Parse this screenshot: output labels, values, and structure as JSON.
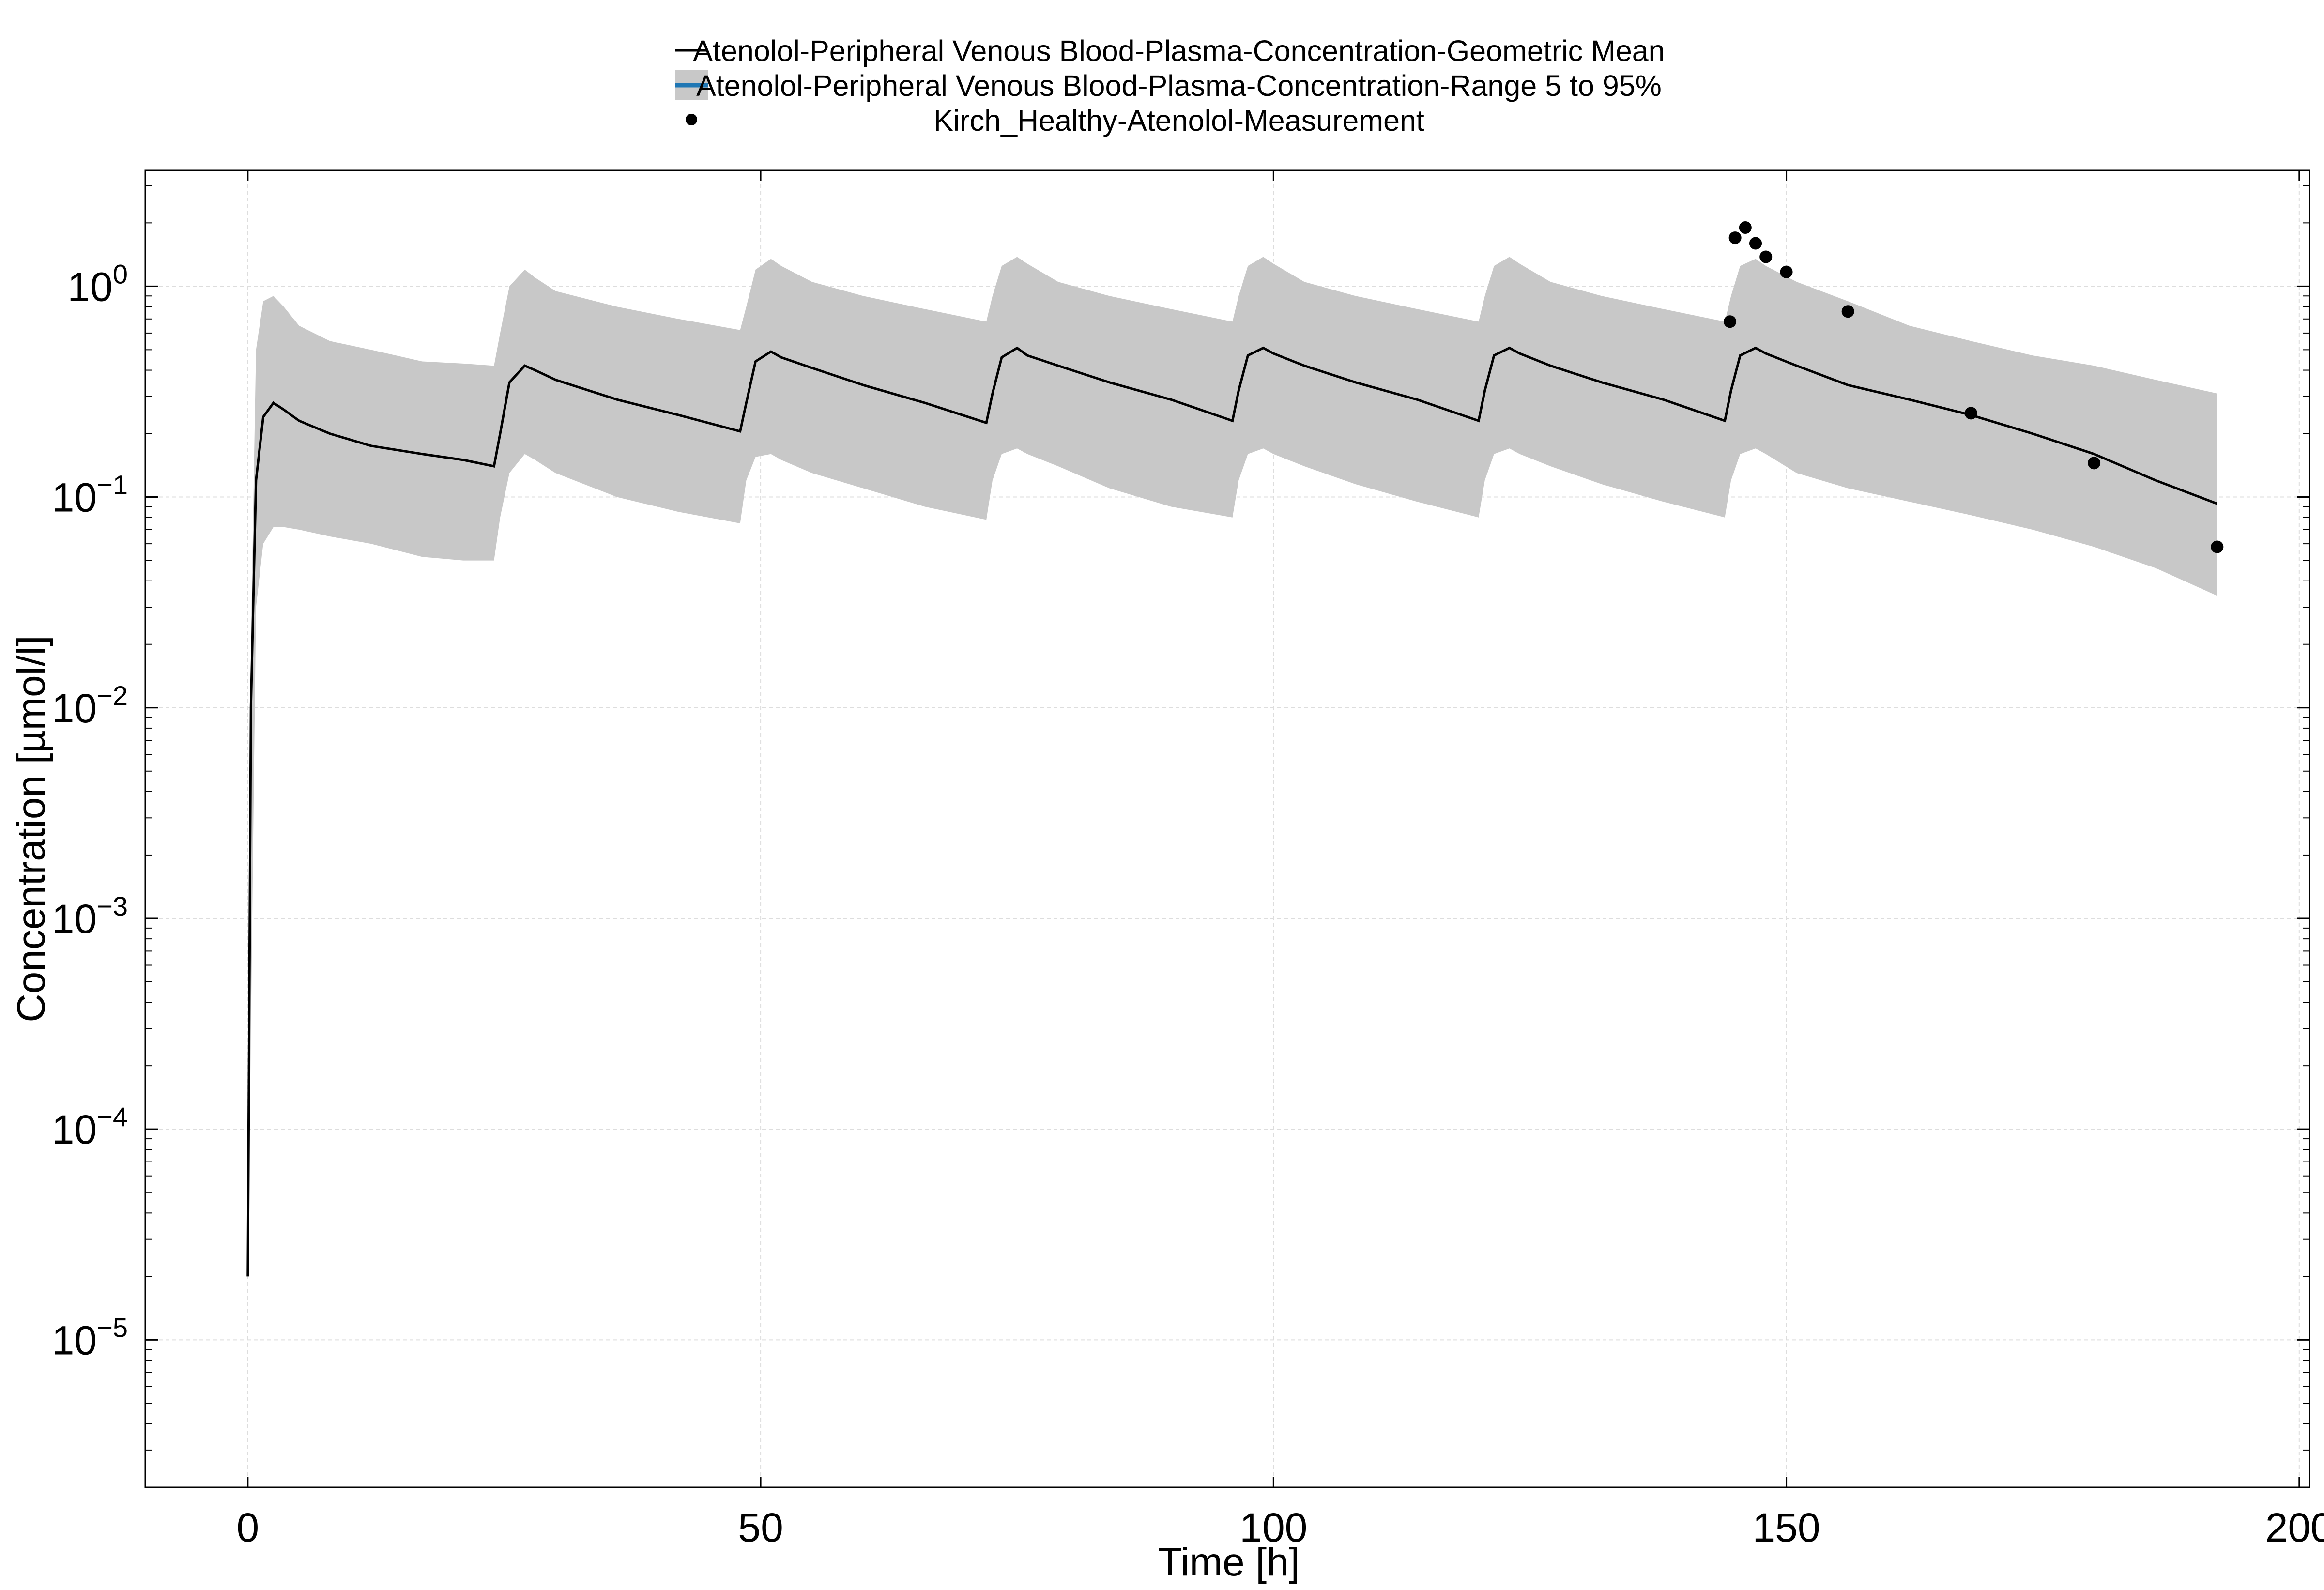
{
  "chart_data": {
    "type": "line",
    "title": "",
    "xlabel": "Time [h]",
    "ylabel": "Concentration [µmol/l]",
    "xlim": [
      -10,
      201
    ],
    "ylim_log10": [
      -5.7,
      0.55
    ],
    "yscale": "log",
    "grid": true,
    "legend_position": "top-center",
    "x_tick_labels": [
      "0",
      "50",
      "100",
      "150",
      "200"
    ],
    "x_ticks": [
      0,
      50,
      100,
      150,
      200
    ],
    "y_tick_labels": [
      {
        "base": "10",
        "exp": "0",
        "value": 1
      },
      {
        "base": "10",
        "exp": "−1",
        "value": 0.1
      },
      {
        "base": "10",
        "exp": "−2",
        "value": 0.01
      },
      {
        "base": "10",
        "exp": "−3",
        "value": 0.001
      },
      {
        "base": "10",
        "exp": "−4",
        "value": 0.0001
      },
      {
        "base": "10",
        "exp": "−5",
        "value": 1e-05
      }
    ],
    "legend": [
      {
        "label": "Atenolol-Peripheral Venous Blood-Plasma-Concentration-Geometric Mean",
        "marker": "line",
        "color": "#000000"
      },
      {
        "label": "Atenolol-Peripheral Venous Blood-Plasma-Concentration-Range 5 to 95%",
        "marker": "band",
        "color": "#c8c8c8",
        "edge_color": "#1f77b4"
      },
      {
        "label": "Kirch_Healthy-Atenolol-Measurement",
        "marker": "dot",
        "color": "#000000"
      }
    ],
    "series": [
      {
        "name": "Atenolol-Peripheral Venous Blood-Plasma-Concentration-Geometric Mean",
        "kind": "line",
        "color": "#000000",
        "x": [
          0,
          0.3,
          0.8,
          1.5,
          2.5,
          3.5,
          5,
          8,
          12,
          17,
          21,
          24,
          24.6,
          25.5,
          27,
          28,
          30,
          36,
          42,
          48,
          48.6,
          49.5,
          51,
          52,
          55,
          60,
          66,
          72,
          72.6,
          73.5,
          75,
          76,
          79,
          84,
          90,
          96,
          96.6,
          97.5,
          99,
          100,
          103,
          108,
          114,
          120,
          120.6,
          121.5,
          123,
          124,
          127,
          132,
          138,
          144,
          144.6,
          145.5,
          147,
          148,
          151,
          156,
          162,
          168,
          174,
          180,
          186,
          192
        ],
        "y": [
          2e-05,
          0.01,
          0.12,
          0.24,
          0.28,
          0.26,
          0.23,
          0.2,
          0.175,
          0.16,
          0.15,
          0.14,
          0.2,
          0.35,
          0.42,
          0.4,
          0.36,
          0.29,
          0.245,
          0.205,
          0.28,
          0.44,
          0.49,
          0.46,
          0.41,
          0.34,
          0.28,
          0.225,
          0.31,
          0.46,
          0.51,
          0.47,
          0.42,
          0.35,
          0.29,
          0.23,
          0.32,
          0.47,
          0.51,
          0.48,
          0.42,
          0.35,
          0.29,
          0.23,
          0.32,
          0.47,
          0.51,
          0.48,
          0.42,
          0.35,
          0.29,
          0.23,
          0.32,
          0.47,
          0.51,
          0.48,
          0.42,
          0.34,
          0.29,
          0.245,
          0.2,
          0.16,
          0.12,
          0.093
        ]
      },
      {
        "name": "Atenolol-Peripheral Venous Blood-Plasma-Concentration-Range 5 to 95%",
        "kind": "band",
        "color": "#c8c8c8",
        "x": [
          0,
          0.3,
          0.8,
          1.5,
          2.5,
          3.5,
          5,
          8,
          12,
          17,
          21,
          24,
          24.6,
          25.5,
          27,
          28,
          30,
          36,
          42,
          48,
          48.6,
          49.5,
          51,
          52,
          55,
          60,
          66,
          72,
          72.6,
          73.5,
          75,
          76,
          79,
          84,
          90,
          96,
          96.6,
          97.5,
          99,
          100,
          103,
          108,
          114,
          120,
          120.6,
          121.5,
          123,
          124,
          127,
          132,
          138,
          144,
          144.6,
          145.5,
          147,
          148,
          151,
          156,
          162,
          168,
          174,
          180,
          186,
          192
        ],
        "lower": [
          2e-05,
          0.0003,
          0.03,
          0.06,
          0.072,
          0.072,
          0.07,
          0.065,
          0.06,
          0.052,
          0.05,
          0.05,
          0.08,
          0.13,
          0.16,
          0.15,
          0.13,
          0.1,
          0.085,
          0.075,
          0.12,
          0.155,
          0.16,
          0.15,
          0.13,
          0.11,
          0.09,
          0.078,
          0.12,
          0.16,
          0.17,
          0.16,
          0.14,
          0.11,
          0.09,
          0.08,
          0.12,
          0.16,
          0.17,
          0.16,
          0.14,
          0.115,
          0.095,
          0.08,
          0.12,
          0.16,
          0.17,
          0.16,
          0.14,
          0.115,
          0.095,
          0.08,
          0.12,
          0.16,
          0.17,
          0.16,
          0.13,
          0.11,
          0.095,
          0.082,
          0.07,
          0.058,
          0.046,
          0.034
        ],
        "upper": [
          2e-05,
          0.02,
          0.5,
          0.85,
          0.9,
          0.8,
          0.65,
          0.55,
          0.5,
          0.44,
          0.43,
          0.42,
          0.6,
          1.0,
          1.2,
          1.1,
          0.95,
          0.8,
          0.7,
          0.62,
          0.8,
          1.2,
          1.35,
          1.25,
          1.05,
          0.9,
          0.78,
          0.68,
          0.9,
          1.25,
          1.38,
          1.28,
          1.05,
          0.9,
          0.78,
          0.68,
          0.9,
          1.25,
          1.38,
          1.28,
          1.05,
          0.9,
          0.78,
          0.68,
          0.9,
          1.25,
          1.38,
          1.28,
          1.05,
          0.9,
          0.78,
          0.68,
          0.9,
          1.25,
          1.35,
          1.25,
          1.05,
          0.85,
          0.65,
          0.55,
          0.47,
          0.42,
          0.36,
          0.31
        ]
      },
      {
        "name": "Kirch_Healthy-Atenolol-Measurement",
        "kind": "scatter",
        "color": "#000000",
        "x": [
          144.5,
          145,
          146,
          147,
          148,
          150,
          156,
          168,
          180,
          192
        ],
        "y": [
          0.68,
          1.7,
          1.9,
          1.6,
          1.38,
          1.17,
          0.76,
          0.25,
          0.145,
          0.058
        ]
      }
    ]
  }
}
